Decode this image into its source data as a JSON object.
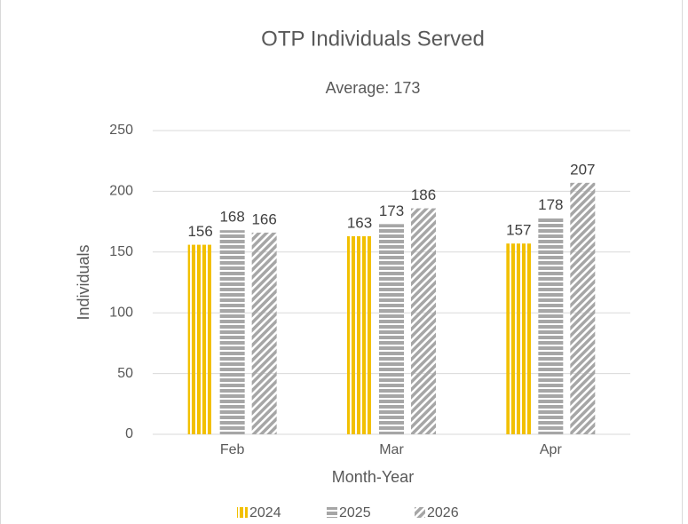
{
  "chart_data": {
    "type": "bar",
    "title": "OTP Individuals Served",
    "subtitle": "Average: 173",
    "x_label": "Month-Year",
    "y_label": "Individuals",
    "categories": [
      "Feb",
      "Mar",
      "Apr"
    ],
    "series": [
      {
        "name": "2024",
        "color": "#f2c000",
        "pattern": "vertical",
        "values": [
          156,
          163,
          157
        ]
      },
      {
        "name": "2025",
        "color": "#a6a6a6",
        "pattern": "horizontal",
        "values": [
          168,
          173,
          178
        ]
      },
      {
        "name": "2026",
        "color": "#a6a6a6",
        "pattern": "diagonal",
        "values": [
          166,
          186,
          207
        ]
      }
    ],
    "ylim": [
      0,
      250
    ],
    "yticks": [
      0,
      50,
      100,
      150,
      200,
      250
    ],
    "grid": true,
    "legend": "bottom"
  }
}
